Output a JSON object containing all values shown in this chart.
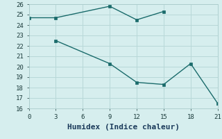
{
  "line1_x": [
    0,
    3,
    9,
    12,
    15
  ],
  "line1_y": [
    24.7,
    24.7,
    25.8,
    24.5,
    25.3
  ],
  "line2_x": [
    3,
    9,
    12,
    15,
    18,
    21
  ],
  "line2_y": [
    22.5,
    20.3,
    18.5,
    18.3,
    20.3,
    16.5
  ],
  "line_color": "#1a6b6b",
  "bg_color": "#d6eeee",
  "grid_color": "#b8d8d8",
  "xlabel": "Humidex (Indice chaleur)",
  "xlim": [
    0,
    21
  ],
  "ylim": [
    16,
    26
  ],
  "xticks": [
    0,
    3,
    6,
    9,
    12,
    15,
    18,
    21
  ],
  "yticks": [
    16,
    17,
    18,
    19,
    20,
    21,
    22,
    23,
    24,
    25,
    26
  ],
  "marker": "s",
  "markersize": 2.5,
  "linewidth": 1.0,
  "xlabel_fontsize": 8
}
